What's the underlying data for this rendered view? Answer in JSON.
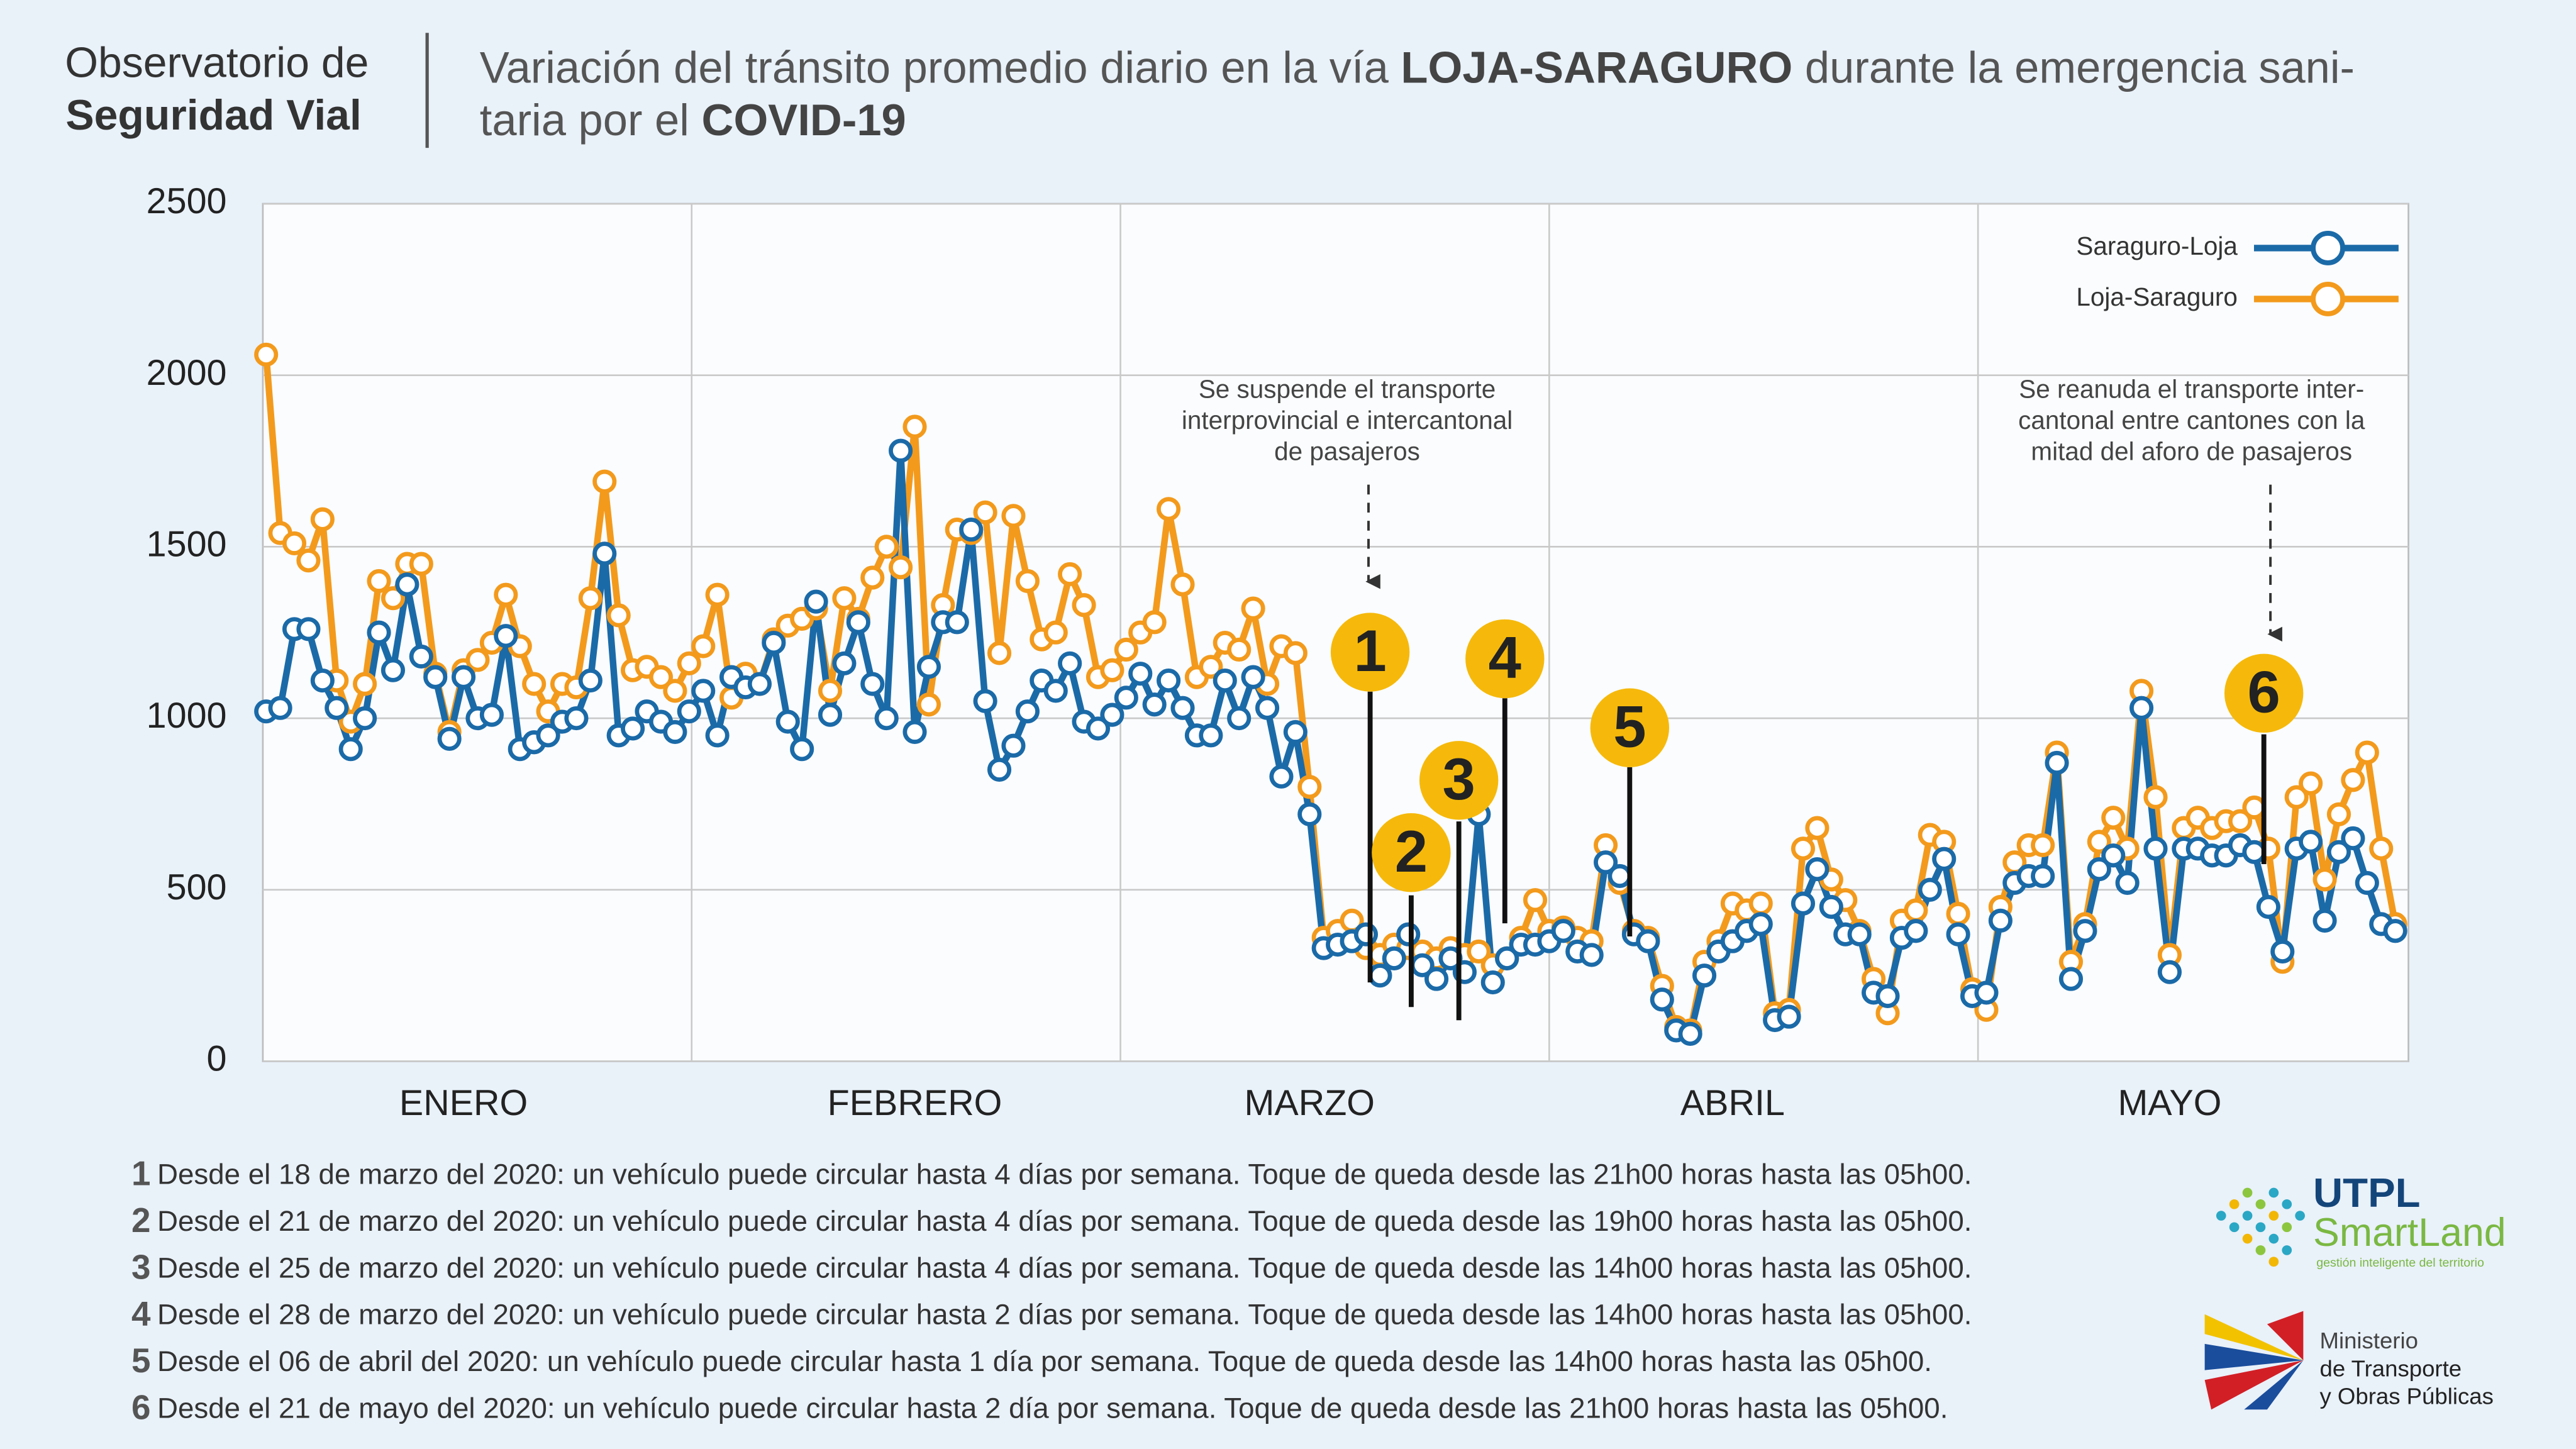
{
  "header": {
    "line1": "Observatorio de",
    "line2": "Seguridad Vial"
  },
  "chart_data": {
    "type": "line",
    "title": {
      "line1_a": "Variación del tránsito promedio diario en la vía ",
      "line1_b": "LOJA-SARAGURO",
      "line1_c": " durante la emergencia sani-",
      "line2_a": "taria por el ",
      "line2_b": "COVID-19"
    },
    "categories": [
      null,
      null,
      null,
      null,
      null,
      null,
      null,
      null,
      null,
      null,
      null,
      null,
      null,
      null,
      "ENERO",
      null,
      null,
      null,
      null,
      null,
      null,
      null,
      null,
      null,
      null,
      null,
      null,
      null,
      null,
      null,
      null,
      null,
      null,
      null,
      null,
      null,
      null,
      null,
      null,
      null,
      null,
      null,
      null,
      null,
      null,
      null,
      "FEBRERO",
      null,
      null,
      null,
      null,
      null,
      null,
      null,
      null,
      null,
      null,
      null,
      null,
      null,
      null,
      null,
      null,
      null,
      null,
      null,
      null,
      null,
      null,
      null,
      null,
      null,
      null,
      null,
      "MARZO",
      null,
      null,
      null,
      null,
      null,
      null,
      null,
      null,
      null,
      null,
      null,
      null,
      null,
      null,
      null,
      null,
      null,
      null,
      null,
      null,
      null,
      null,
      null,
      null,
      null,
      null,
      null,
      null,
      null,
      "ABRIL",
      null,
      null,
      null,
      null,
      null,
      null,
      null,
      null,
      null,
      null,
      null,
      null,
      null,
      null,
      null,
      null,
      null,
      null,
      null,
      null,
      null,
      null,
      null,
      null,
      null,
      null,
      null,
      null,
      null,
      null,
      "MAYO",
      null,
      null,
      null,
      null,
      null,
      null,
      null,
      null,
      null,
      null,
      null,
      null,
      null,
      null,
      null,
      null
    ],
    "series": [
      {
        "name": "Saraguro-Loja",
        "color": "#1b6aa8",
        "values": [
          1020,
          1030,
          1260,
          1260,
          1110,
          1030,
          910,
          1000,
          1250,
          1140,
          1390,
          1180,
          1120,
          940,
          1120,
          1000,
          1010,
          1240,
          910,
          930,
          950,
          990,
          1000,
          1110,
          1480,
          950,
          970,
          1020,
          990,
          960,
          1020,
          1080,
          950,
          1120,
          1090,
          1100,
          1220,
          990,
          910,
          1340,
          1010,
          1160,
          1280,
          1100,
          1000,
          1780,
          960,
          1150,
          1280,
          1280,
          1550,
          1050,
          850,
          920,
          1020,
          1110,
          1080,
          1160,
          990,
          970,
          1010,
          1060,
          1130,
          1040,
          1110,
          1030,
          950,
          950,
          1110,
          1000,
          1120,
          1030,
          830,
          960,
          720,
          330,
          340,
          350,
          370,
          250,
          300,
          370,
          280,
          240,
          300,
          260,
          720,
          230,
          300,
          340,
          340,
          350,
          380,
          320,
          310,
          580,
          540,
          370,
          350,
          180,
          90,
          80,
          250,
          320,
          350,
          380,
          400,
          120,
          130,
          460,
          560,
          450,
          370,
          370,
          200,
          190,
          360,
          380,
          500,
          590,
          370,
          190,
          200,
          410,
          520,
          540,
          540,
          870,
          240,
          380,
          560,
          600,
          520,
          1030,
          620,
          260,
          620,
          620,
          600,
          600,
          630,
          610,
          450,
          320,
          620,
          640,
          410,
          610,
          650,
          520,
          400,
          380
        ]
      },
      {
        "name": "Loja-Saraguro",
        "color": "#f39a1c",
        "values": [
          2060,
          1540,
          1510,
          1460,
          1580,
          1110,
          990,
          1100,
          1400,
          1350,
          1450,
          1450,
          1130,
          960,
          1140,
          1170,
          1220,
          1360,
          1210,
          1100,
          1020,
          1100,
          1090,
          1350,
          1690,
          1300,
          1140,
          1150,
          1120,
          1080,
          1160,
          1210,
          1360,
          1060,
          1130,
          1100,
          1230,
          1270,
          1290,
          1320,
          1080,
          1350,
          1290,
          1410,
          1500,
          1440,
          1850,
          1040,
          1330,
          1550,
          1540,
          1600,
          1190,
          1590,
          1400,
          1230,
          1250,
          1420,
          1330,
          1120,
          1140,
          1200,
          1250,
          1280,
          1610,
          1390,
          1120,
          1150,
          1220,
          1200,
          1320,
          1100,
          1210,
          1190,
          800,
          360,
          380,
          410,
          330,
          310,
          340,
          330,
          320,
          300,
          330,
          310,
          320,
          280,
          300,
          360,
          470,
          380,
          390,
          360,
          350,
          630,
          520,
          380,
          360,
          220,
          100,
          90,
          290,
          350,
          460,
          440,
          460,
          140,
          150,
          620,
          680,
          530,
          470,
          380,
          240,
          140,
          410,
          440,
          660,
          640,
          430,
          210,
          150,
          450,
          580,
          630,
          630,
          900,
          290,
          400,
          640,
          710,
          620,
          1080,
          770,
          310,
          680,
          710,
          680,
          700,
          700,
          740,
          620,
          290,
          770,
          810,
          530,
          720,
          820,
          900,
          620,
          400
        ]
      }
    ],
    "ylim": [
      0,
      2500
    ],
    "yticks": [
      0,
      500,
      1000,
      1500,
      2000,
      2500
    ],
    "grid": true,
    "legend": "upper right",
    "annotations": [
      {
        "lines": [
          "Se suspende el transporte",
          "interprovincial e intercantonal",
          "de pasajeros"
        ]
      },
      {
        "lines": [
          "Se reanuda el transporte inter-",
          "cantonal entre cantones con la",
          "mitad del aforo de pasajeros"
        ]
      }
    ],
    "markers": [
      "1",
      "2",
      "3",
      "4",
      "5",
      "6"
    ]
  },
  "notes": [
    {
      "number": "1",
      "text": "Desde el 18 de marzo del 2020: un vehículo puede circular hasta 4 días por semana. Toque de queda desde las 21h00 horas hasta las 05h00."
    },
    {
      "number": "2",
      "text": "Desde el 21 de marzo del 2020: un vehículo puede circular hasta 4 días por semana. Toque de queda desde las 19h00 horas hasta las 05h00."
    },
    {
      "number": "3",
      "text": "Desde el 25 de marzo del 2020: un vehículo puede circular hasta 4 días por semana. Toque de queda desde las 14h00 horas hasta las 05h00."
    },
    {
      "number": "4",
      "text": "Desde el 28 de marzo del 2020: un vehículo puede circular hasta 2 días por semana. Toque de queda desde las 14h00 horas hasta las 05h00."
    },
    {
      "number": "5",
      "text": "Desde el 06 de abril del 2020: un vehículo puede circular hasta 1 día por semana. Toque de queda desde las 14h00 horas hasta las 05h00."
    },
    {
      "number": "6",
      "text": "Desde el 21 de mayo del 2020: un vehículo puede circular hasta 2 día por semana. Toque de queda desde las 21h00 horas hasta las 05h00."
    }
  ],
  "logos": {
    "utpl": "UTPL",
    "smartland": "SmartLand",
    "smartland_tag": "gestión inteligente del territorio",
    "mtop1": "Ministerio",
    "mtop2": "de Transporte",
    "mtop3": "y Obras Públicas"
  }
}
